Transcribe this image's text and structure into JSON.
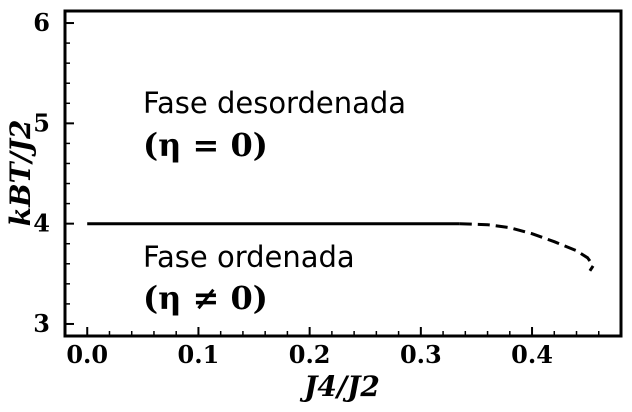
{
  "chart_data": {
    "type": "line",
    "xlabel": "J4/J2",
    "ylabel": "kBT/J2",
    "xlim": [
      -0.02,
      0.48
    ],
    "ylim": [
      2.88,
      6.12
    ],
    "xticks": [
      "0.0",
      "0.1",
      "0.2",
      "0.3",
      "0.4"
    ],
    "yticks": [
      "3",
      "4",
      "5",
      "6"
    ],
    "series": [
      {
        "style": "solid",
        "x": [
          0.0,
          0.335
        ],
        "y": [
          4.0,
          4.0
        ]
      },
      {
        "style": "dashed",
        "x": [
          0.335,
          0.36,
          0.38,
          0.4,
          0.42,
          0.44,
          0.45,
          0.455,
          0.452
        ],
        "y": [
          4.0,
          3.99,
          3.96,
          3.9,
          3.82,
          3.73,
          3.66,
          3.58,
          3.53
        ]
      }
    ],
    "annotations": {
      "disordered_label": "Fase desordenada",
      "disordered_eq": "(η = 0)",
      "ordered_label": "Fase ordenada",
      "ordered_eq": "(η ≠ 0)"
    },
    "grid": false
  }
}
